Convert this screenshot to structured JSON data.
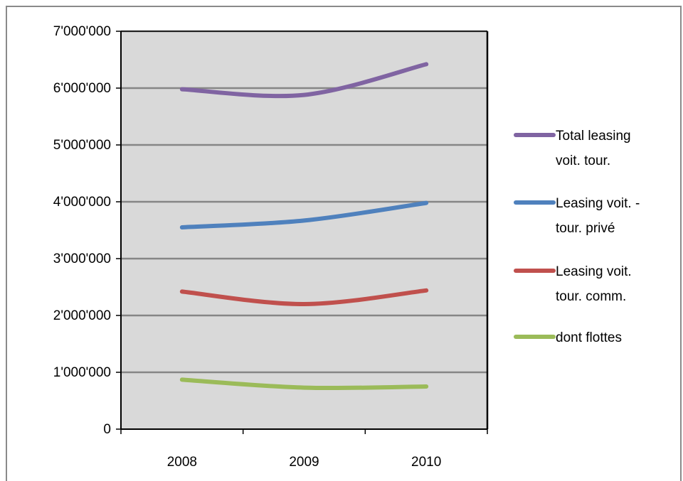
{
  "chart_data": {
    "type": "line",
    "title": "",
    "xlabel": "",
    "ylabel": "",
    "categories": [
      "2008",
      "2009",
      "2010"
    ],
    "ylim": [
      0,
      7000000
    ],
    "ytick_values": [
      0,
      1000000,
      2000000,
      3000000,
      4000000,
      5000000,
      6000000,
      7000000
    ],
    "ytick_labels": [
      "0",
      "1'000'000",
      "2'000'000",
      "3'000'000",
      "4'000'000",
      "5'000'000",
      "6'000'000",
      "7'000'000"
    ],
    "grid": true,
    "plot_background": "#d9d9d9",
    "legend_position": "right",
    "smooth": true,
    "series": [
      {
        "name": "Total leasing voit. tour.",
        "legend_lines": [
          "Total leasing",
          "voit. tour."
        ],
        "color": "#8064a2",
        "values": [
          5980000,
          5880000,
          6420000
        ]
      },
      {
        "name": "Leasing voit. - tour. privé",
        "legend_lines": [
          "Leasing voit. -",
          "tour. privé"
        ],
        "color": "#4f81bd",
        "values": [
          3550000,
          3670000,
          3980000
        ]
      },
      {
        "name": "Leasing voit. tour. comm.",
        "legend_lines": [
          "Leasing voit.",
          "tour. comm."
        ],
        "color": "#c0504d",
        "values": [
          2420000,
          2200000,
          2440000
        ]
      },
      {
        "name": "dont flottes",
        "legend_lines": [
          "dont flottes"
        ],
        "color": "#9bbb59",
        "values": [
          870000,
          730000,
          750000
        ]
      }
    ]
  }
}
